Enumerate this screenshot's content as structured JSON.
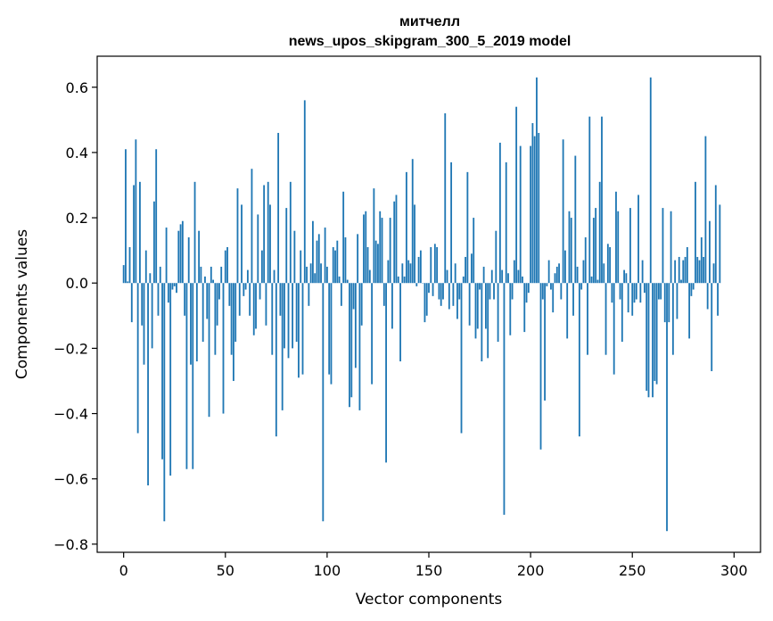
{
  "chart_data": {
    "type": "bar",
    "title_line1": "митчелл",
    "title_line2": "news_upos_skipgram_300_5_2019 model",
    "xlabel": "Vector components",
    "ylabel": "Components values",
    "xlim": [
      -13,
      313
    ],
    "ylim": [
      -0.825,
      0.695
    ],
    "x_ticks": [
      0,
      50,
      100,
      150,
      200,
      250,
      300
    ],
    "y_ticks": [
      0.6,
      0.4,
      0.2,
      0.0,
      -0.2,
      -0.4,
      -0.6,
      -0.8
    ],
    "y_tick_labels": [
      "0.6",
      "0.4",
      "0.2",
      "0.0",
      "−0.2",
      "−0.4",
      "−0.6",
      "−0.8"
    ],
    "grid": false,
    "bar_color": "#1f77b4",
    "values": [
      0.055,
      0.41,
      0.005,
      0.11,
      -0.12,
      0.3,
      0.44,
      -0.46,
      0.31,
      -0.13,
      -0.25,
      0.1,
      -0.62,
      0.03,
      -0.2,
      0.25,
      0.41,
      -0.1,
      0.05,
      -0.54,
      -0.73,
      0.17,
      -0.06,
      -0.59,
      -0.02,
      -0.01,
      -0.03,
      0.16,
      0.18,
      0.19,
      -0.1,
      -0.57,
      0.14,
      -0.25,
      -0.57,
      0.31,
      -0.24,
      0.16,
      0.05,
      -0.18,
      0.02,
      -0.11,
      -0.41,
      0.05,
      0.01,
      -0.22,
      -0.13,
      -0.05,
      0.05,
      -0.4,
      0.1,
      0.11,
      -0.07,
      -0.22,
      -0.3,
      -0.18,
      0.29,
      -0.1,
      0.24,
      -0.04,
      -0.02,
      0.04,
      -0.1,
      0.35,
      -0.16,
      -0.14,
      0.21,
      -0.05,
      0.1,
      0.3,
      -0.13,
      0.31,
      0.24,
      -0.22,
      0.04,
      -0.47,
      0.46,
      -0.1,
      -0.39,
      -0.2,
      0.23,
      -0.23,
      0.31,
      -0.2,
      0.16,
      -0.18,
      -0.29,
      0.1,
      -0.28,
      0.56,
      0.05,
      -0.07,
      0.06,
      0.19,
      0.03,
      0.13,
      0.15,
      0.06,
      -0.73,
      0.17,
      0.05,
      -0.28,
      -0.31,
      0.11,
      0.1,
      0.13,
      0.02,
      -0.07,
      0.28,
      0.14,
      0.01,
      -0.38,
      -0.35,
      -0.08,
      -0.26,
      0.15,
      -0.39,
      -0.13,
      0.21,
      0.22,
      0.11,
      0.04,
      -0.31,
      0.29,
      0.13,
      0.12,
      0.22,
      0.2,
      -0.07,
      -0.55,
      0.07,
      0.2,
      -0.14,
      0.25,
      0.27,
      0.02,
      -0.24,
      0.06,
      0.02,
      0.34,
      0.07,
      0.06,
      0.38,
      0.24,
      -0.01,
      0.08,
      0.1,
      0.0,
      -0.12,
      -0.1,
      -0.03,
      0.11,
      -0.04,
      0.12,
      0.11,
      -0.05,
      -0.07,
      -0.05,
      0.52,
      0.04,
      -0.08,
      0.37,
      -0.07,
      0.06,
      -0.11,
      -0.05,
      -0.46,
      0.02,
      0.08,
      0.34,
      -0.13,
      0.09,
      0.2,
      -0.17,
      -0.14,
      -0.02,
      -0.24,
      0.05,
      -0.14,
      -0.23,
      -0.05,
      0.04,
      -0.05,
      0.16,
      -0.18,
      0.43,
      0.04,
      -0.71,
      0.37,
      0.03,
      -0.16,
      -0.05,
      0.07,
      0.54,
      0.04,
      0.42,
      0.02,
      -0.15,
      -0.06,
      -0.03,
      0.42,
      0.49,
      0.45,
      0.63,
      0.46,
      -0.51,
      -0.05,
      -0.36,
      -0.01,
      0.07,
      -0.02,
      -0.09,
      0.03,
      0.05,
      0.06,
      -0.05,
      0.44,
      0.1,
      -0.17,
      0.22,
      0.2,
      -0.1,
      0.39,
      0.05,
      -0.47,
      -0.02,
      0.07,
      0.14,
      -0.22,
      0.51,
      0.02,
      0.2,
      0.23,
      0.01,
      0.31,
      0.51,
      0.06,
      -0.22,
      0.12,
      0.11,
      -0.06,
      -0.28,
      0.28,
      0.22,
      -0.05,
      -0.18,
      0.04,
      0.03,
      -0.09,
      0.23,
      -0.1,
      -0.06,
      -0.05,
      0.27,
      -0.06,
      0.07,
      -0.03,
      -0.33,
      -0.35,
      0.63,
      -0.35,
      -0.3,
      -0.31,
      -0.05,
      -0.05,
      0.23,
      -0.12,
      -0.76,
      -0.12,
      0.22,
      -0.22,
      0.07,
      -0.11,
      0.08,
      0.01,
      0.07,
      0.08,
      0.11,
      -0.17,
      -0.04,
      -0.02,
      0.31,
      0.08,
      0.07,
      0.14,
      0.08,
      0.45,
      -0.08,
      0.19,
      -0.27,
      0.06,
      0.3,
      -0.1,
      0.24
    ]
  }
}
